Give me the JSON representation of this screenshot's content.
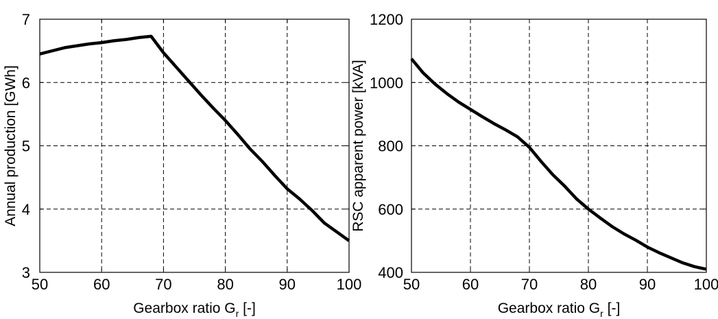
{
  "chart_data": [
    {
      "type": "line",
      "title": "",
      "xlabel_main": "Gearbox ratio G",
      "xlabel_sub": "r",
      "xlabel_tail": " [-]",
      "ylabel": "Annual production [GWh]",
      "xlim": [
        50,
        100
      ],
      "ylim": [
        3,
        7
      ],
      "xticks": [
        50,
        60,
        70,
        80,
        90,
        100
      ],
      "yticks": [
        3,
        4,
        5,
        6,
        7
      ],
      "grid": true,
      "line_color": "#000000",
      "series": [
        {
          "x": [
            50,
            52,
            54,
            56,
            58,
            60,
            62,
            64,
            66,
            68,
            70,
            72,
            74,
            76,
            78,
            80,
            82,
            84,
            86,
            88,
            90,
            92,
            94,
            96,
            98,
            100
          ],
          "y": [
            6.45,
            6.5,
            6.55,
            6.58,
            6.61,
            6.63,
            6.66,
            6.68,
            6.71,
            6.73,
            6.47,
            6.25,
            6.03,
            5.81,
            5.6,
            5.4,
            5.18,
            4.95,
            4.75,
            4.53,
            4.32,
            4.16,
            3.98,
            3.78,
            3.64,
            3.5
          ]
        }
      ]
    },
    {
      "type": "line",
      "title": "",
      "xlabel_main": "Gearbox ratio G",
      "xlabel_sub": "r",
      "xlabel_tail": " [-]",
      "ylabel": "RSC apparent power [kVA]",
      "xlim": [
        50,
        100
      ],
      "ylim": [
        400,
        1200
      ],
      "xticks": [
        50,
        60,
        70,
        80,
        90,
        100
      ],
      "yticks": [
        400,
        600,
        800,
        1000,
        1200
      ],
      "grid": true,
      "line_color": "#000000",
      "series": [
        {
          "x": [
            50,
            52,
            54,
            56,
            58,
            60,
            62,
            64,
            66,
            68,
            70,
            72,
            74,
            76,
            78,
            80,
            82,
            84,
            86,
            88,
            90,
            92,
            94,
            96,
            98,
            100
          ],
          "y": [
            1075,
            1030,
            995,
            965,
            938,
            915,
            892,
            870,
            850,
            828,
            795,
            750,
            708,
            672,
            632,
            600,
            572,
            545,
            522,
            502,
            480,
            462,
            446,
            430,
            418,
            410
          ]
        }
      ]
    }
  ]
}
